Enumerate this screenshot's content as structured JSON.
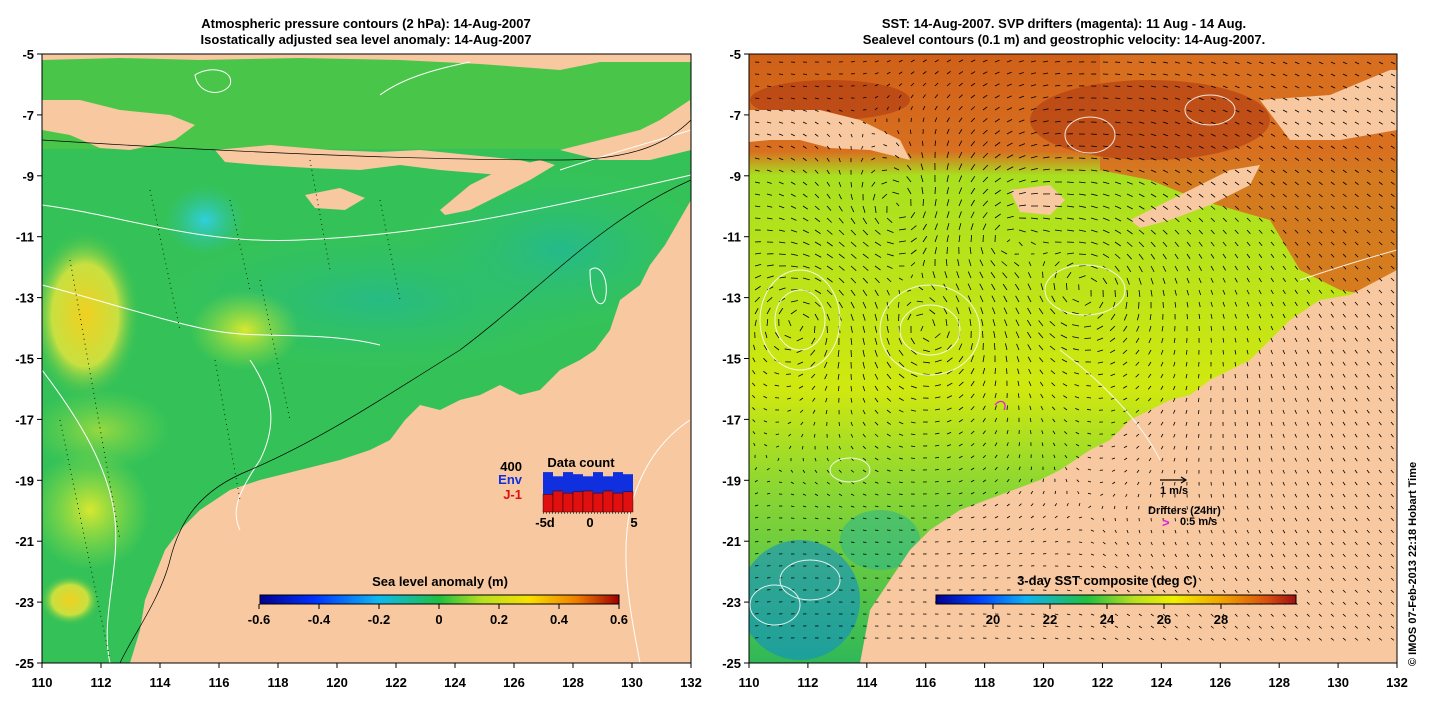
{
  "left_panel": {
    "title_line1": "Atmospheric pressure contours (2 hPa): 14-Aug-2007",
    "title_line2": "Isostatically adjusted sea level anomaly: 14-Aug-2007",
    "colorbar_label": "Sea level anomaly (m)",
    "colorbar_ticks": [
      "-0.6",
      "-0.4",
      "-0.2",
      "0",
      "0.2",
      "0.4",
      "0.6"
    ],
    "data_count": {
      "title": "Data count",
      "max_label": "400",
      "env_label": "Env",
      "j1_label": "J-1",
      "x_ticks": [
        "-5d",
        "0",
        "5"
      ],
      "env_color": "#1030e0",
      "j1_color": "#e01010"
    }
  },
  "right_panel": {
    "title_line1": "SST: 14-Aug-2007. SVP drifters (magenta): 11 Aug - 14 Aug.",
    "title_line2": "Sealevel contours (0.1 m) and geostrophic velocity: 14-Aug-2007.",
    "colorbar_label": "3-day SST composite (deg C)",
    "colorbar_ticks": [
      "20",
      "22",
      "24",
      "26",
      "28"
    ],
    "velocity_legend": "1 m/s",
    "drifters_legend": "Drifters (24hr)",
    "drifters_speed": "0.5 m/s",
    "drifter_color": "#e020e0"
  },
  "axes": {
    "y_ticks": [
      "-5",
      "-7",
      "-9",
      "-11",
      "-13",
      "-15",
      "-17",
      "-19",
      "-21",
      "-23",
      "-25"
    ],
    "x_ticks": [
      "110",
      "112",
      "114",
      "116",
      "118",
      "120",
      "122",
      "124",
      "126",
      "128",
      "130",
      "132"
    ]
  },
  "colors": {
    "land": "#f8c8a0",
    "sla_background": "#30c060",
    "sst_north": "#d8681c"
  },
  "credit": "© IMOS 07-Feb-2013 22:18 Hobart Time"
}
